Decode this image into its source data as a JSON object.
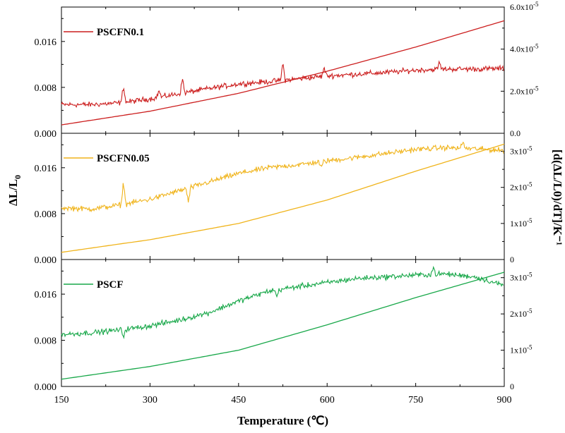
{
  "chart_data": {
    "type": "line",
    "xlabel": "Temperature (℃)",
    "ylabel_left": "ΔL/L0",
    "ylabel_right": "[d(ΔL/L0)/dT]/K⁻¹",
    "x_ticks": [
      "150",
      "300",
      "450",
      "600",
      "750",
      "900"
    ],
    "xlim": [
      150,
      900
    ],
    "panels": [
      {
        "name": "PSCFN0.1",
        "color": "#cc1f1f",
        "ylim_left": [
          0,
          0.022
        ],
        "left_ticks": [
          "0.000",
          "0.008",
          "0.016"
        ],
        "ylim_right": [
          0,
          6e-05
        ],
        "right_ticks": [
          {
            "value": 0,
            "mantissa": "0.0",
            "exp": ""
          },
          {
            "value": 2e-05,
            "mantissa": "2.0x10",
            "exp": "-5"
          },
          {
            "value": 4e-05,
            "mantissa": "4.0x10",
            "exp": "-5"
          },
          {
            "value": 6e-05,
            "mantissa": "6.0x10",
            "exp": "-5"
          }
        ],
        "expansion_points": [
          [
            150,
            0.005
          ],
          [
            200,
            0.005
          ],
          [
            250,
            0.0053
          ],
          [
            300,
            0.006
          ],
          [
            350,
            0.0069
          ],
          [
            400,
            0.0078
          ],
          [
            450,
            0.0086
          ],
          [
            500,
            0.009
          ],
          [
            550,
            0.0095
          ],
          [
            600,
            0.01
          ],
          [
            650,
            0.0103
          ],
          [
            700,
            0.0106
          ],
          [
            750,
            0.011
          ],
          [
            800,
            0.0112
          ],
          [
            850,
            0.0112
          ],
          [
            900,
            0.0113
          ]
        ],
        "cte_points": [
          [
            150,
            4e-06
          ],
          [
            300,
            1.05e-05
          ],
          [
            450,
            1.9e-05
          ],
          [
            600,
            2.95e-05
          ],
          [
            750,
            4.1e-05
          ],
          [
            900,
            5.35e-05
          ]
        ],
        "spikes": [
          [
            255,
            0.003
          ],
          [
            315,
            0.0012
          ],
          [
            355,
            0.0025
          ],
          [
            525,
            0.003
          ],
          [
            595,
            0.0015
          ],
          [
            790,
            0.0012
          ]
        ]
      },
      {
        "name": "PSCFN0.05",
        "color": "#f0b41c",
        "ylim_left": [
          0,
          0.022
        ],
        "left_ticks": [
          "0.000",
          "0.008",
          "0.016"
        ],
        "ylim_right": [
          0,
          3.5e-05
        ],
        "right_ticks": [
          {
            "value": 0,
            "mantissa": "0",
            "exp": ""
          },
          {
            "value": 1e-05,
            "mantissa": "1x10",
            "exp": "-5"
          },
          {
            "value": 2e-05,
            "mantissa": "2x10",
            "exp": "-5"
          },
          {
            "value": 3e-05,
            "mantissa": "3x10",
            "exp": "-5"
          }
        ],
        "expansion_points": [
          [
            150,
            0.009
          ],
          [
            200,
            0.0088
          ],
          [
            250,
            0.0095
          ],
          [
            300,
            0.0105
          ],
          [
            350,
            0.012
          ],
          [
            400,
            0.0135
          ],
          [
            450,
            0.015
          ],
          [
            500,
            0.016
          ],
          [
            550,
            0.0165
          ],
          [
            600,
            0.0172
          ],
          [
            650,
            0.0178
          ],
          [
            700,
            0.0185
          ],
          [
            750,
            0.0192
          ],
          [
            800,
            0.0195
          ],
          [
            850,
            0.0193
          ],
          [
            900,
            0.019
          ]
        ],
        "cte_points": [
          [
            150,
            2e-06
          ],
          [
            300,
            5.5e-06
          ],
          [
            450,
            1e-05
          ],
          [
            600,
            1.65e-05
          ],
          [
            750,
            2.45e-05
          ],
          [
            900,
            3.2e-05
          ]
        ],
        "spikes": [
          [
            255,
            0.004
          ],
          [
            365,
            -0.0025
          ],
          [
            590,
            -0.0012
          ],
          [
            830,
            0.0012
          ]
        ]
      },
      {
        "name": "PSCF",
        "color": "#19a84a",
        "ylim_left": [
          0,
          0.022
        ],
        "left_ticks": [
          "0.000",
          "0.008",
          "0.016"
        ],
        "ylim_right": [
          0,
          3.5e-05
        ],
        "right_ticks": [
          {
            "value": 0,
            "mantissa": "0",
            "exp": ""
          },
          {
            "value": 1e-05,
            "mantissa": "1x10",
            "exp": "-5"
          },
          {
            "value": 2e-05,
            "mantissa": "2x10",
            "exp": "-5"
          },
          {
            "value": 3e-05,
            "mantissa": "3x10",
            "exp": "-5"
          }
        ],
        "expansion_points": [
          [
            150,
            0.009
          ],
          [
            200,
            0.0093
          ],
          [
            250,
            0.0098
          ],
          [
            300,
            0.0105
          ],
          [
            350,
            0.0115
          ],
          [
            400,
            0.0128
          ],
          [
            450,
            0.0148
          ],
          [
            500,
            0.0165
          ],
          [
            550,
            0.0173
          ],
          [
            600,
            0.018
          ],
          [
            650,
            0.0187
          ],
          [
            700,
            0.019
          ],
          [
            750,
            0.0193
          ],
          [
            800,
            0.0195
          ],
          [
            850,
            0.019
          ],
          [
            900,
            0.0175
          ]
        ],
        "cte_points": [
          [
            150,
            2e-06
          ],
          [
            300,
            5.5e-06
          ],
          [
            450,
            1e-05
          ],
          [
            600,
            1.7e-05
          ],
          [
            750,
            2.45e-05
          ],
          [
            900,
            3.15e-05
          ]
        ],
        "spikes": [
          [
            255,
            -0.0012
          ],
          [
            515,
            -0.0012
          ],
          [
            780,
            0.0012
          ]
        ]
      }
    ]
  }
}
